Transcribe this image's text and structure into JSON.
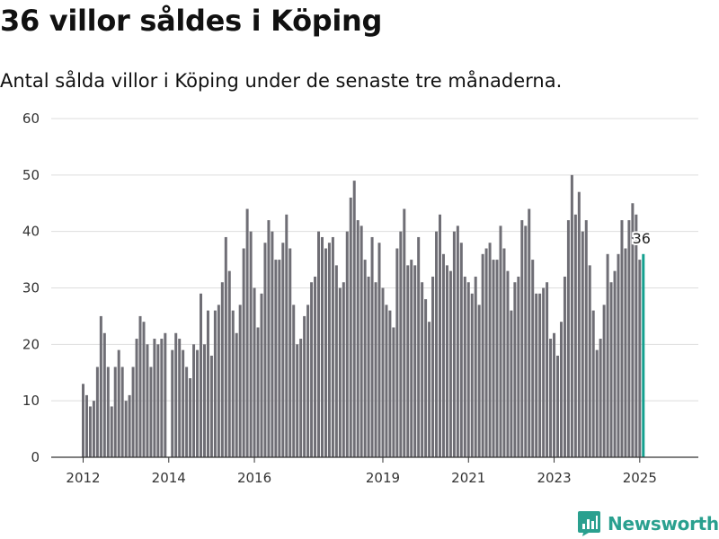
{
  "title": "36 villor såldes i Köping",
  "subtitle": "Antal sålda villor i Köping under de senaste tre månaderna.",
  "brand": {
    "name": "Newsworthy",
    "icon": "newsworthy-logo-icon"
  },
  "colors": {
    "bar": "#6f6e75",
    "highlight": "#14a08f",
    "grid": "#dedede",
    "axis": "#333333",
    "brand": "#2aa08f"
  },
  "chart_data": {
    "type": "bar",
    "title": "36 villor såldes i Köping",
    "subtitle": "Antal sålda villor i Köping under de senaste tre månaderna.",
    "xlabel": "",
    "ylabel": "",
    "ylim": [
      0,
      60
    ],
    "yticks": [
      0,
      10,
      20,
      30,
      40,
      50,
      60
    ],
    "grid": true,
    "x_start": "2012-01",
    "x_end": "2025-02",
    "xticks": [
      {
        "label": "2012",
        "date": "2012-01"
      },
      {
        "label": "2014",
        "date": "2014-01"
      },
      {
        "label": "2016",
        "date": "2016-01"
      },
      {
        "label": "2019",
        "date": "2019-01"
      },
      {
        "label": "2021",
        "date": "2021-01"
      },
      {
        "label": "2023",
        "date": "2023-01"
      },
      {
        "label": "2025",
        "date": "2025-01"
      }
    ],
    "values": [
      13,
      11,
      9,
      10,
      16,
      25,
      22,
      16,
      9,
      16,
      19,
      16,
      10,
      11,
      16,
      21,
      25,
      24,
      20,
      16,
      21,
      20,
      21,
      22,
      0,
      19,
      22,
      21,
      19,
      16,
      14,
      20,
      19,
      29,
      20,
      26,
      18,
      26,
      27,
      31,
      39,
      33,
      26,
      22,
      27,
      37,
      44,
      40,
      30,
      23,
      29,
      38,
      42,
      40,
      35,
      35,
      38,
      43,
      37,
      27,
      20,
      21,
      25,
      27,
      31,
      32,
      40,
      39,
      37,
      38,
      39,
      34,
      30,
      31,
      40,
      46,
      49,
      42,
      41,
      35,
      32,
      39,
      31,
      38,
      30,
      27,
      26,
      23,
      37,
      40,
      44,
      34,
      35,
      34,
      39,
      31,
      28,
      24,
      32,
      40,
      43,
      36,
      34,
      33,
      40,
      41,
      38,
      32,
      31,
      29,
      32,
      27,
      36,
      37,
      38,
      35,
      35,
      41,
      37,
      33,
      26,
      31,
      32,
      42,
      41,
      44,
      35,
      29,
      29,
      30,
      31,
      21,
      22,
      18,
      24,
      32,
      42,
      50,
      43,
      47,
      40,
      42,
      34,
      26,
      19,
      21,
      27,
      36,
      31,
      33,
      36,
      42,
      37,
      42,
      45,
      43,
      35,
      36
    ],
    "highlight": {
      "index": 157,
      "date": "2025-02",
      "value": 36,
      "label": "36"
    }
  }
}
